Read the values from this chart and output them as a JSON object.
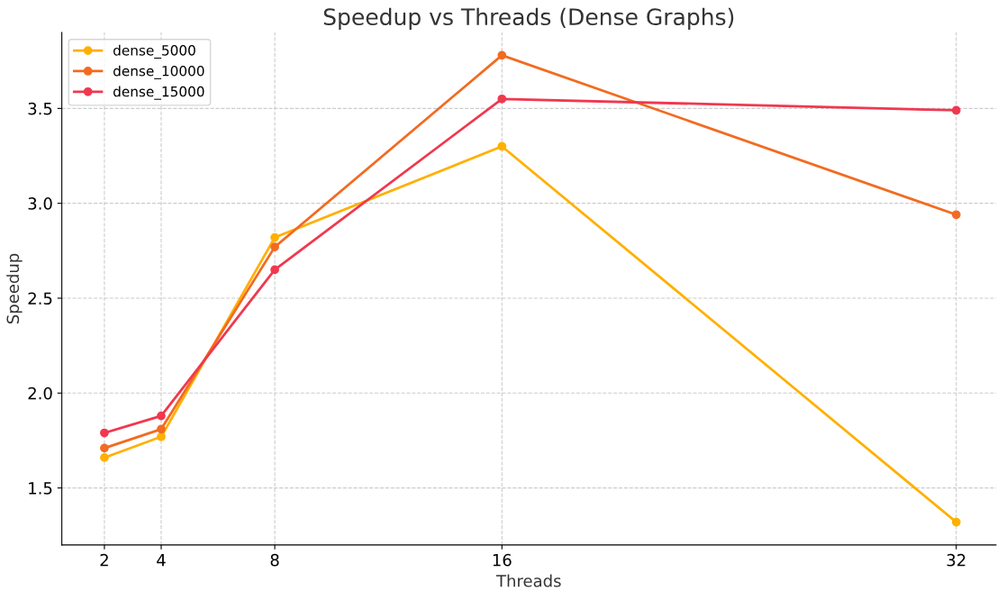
{
  "chart_data": {
    "type": "line",
    "title": "Speedup vs Threads (Dense Graphs)",
    "xlabel": "Threads",
    "ylabel": "Speedup",
    "x": [
      2,
      4,
      8,
      16,
      32
    ],
    "series": [
      {
        "name": "dense_5000",
        "color": "#ffb000",
        "values": [
          1.66,
          1.77,
          2.82,
          3.3,
          1.32
        ]
      },
      {
        "name": "dense_10000",
        "color": "#f26b21",
        "values": [
          1.71,
          1.81,
          2.77,
          3.78,
          2.94
        ]
      },
      {
        "name": "dense_15000",
        "color": "#f0384f",
        "values": [
          1.79,
          1.88,
          2.65,
          3.55,
          3.49
        ]
      }
    ],
    "xlim": [
      0.5,
      33.4
    ],
    "xticks": [
      2,
      4,
      8,
      16,
      32
    ],
    "ylim": [
      1.2,
      3.9
    ],
    "yticks": [
      1.5,
      {
        "value": 2,
        "label": "2.0"
      },
      2.5,
      {
        "value": 3,
        "label": "3.0"
      },
      3.5
    ],
    "grid": true,
    "legend": "top left",
    "marker": "circle",
    "line_style": "solid"
  }
}
